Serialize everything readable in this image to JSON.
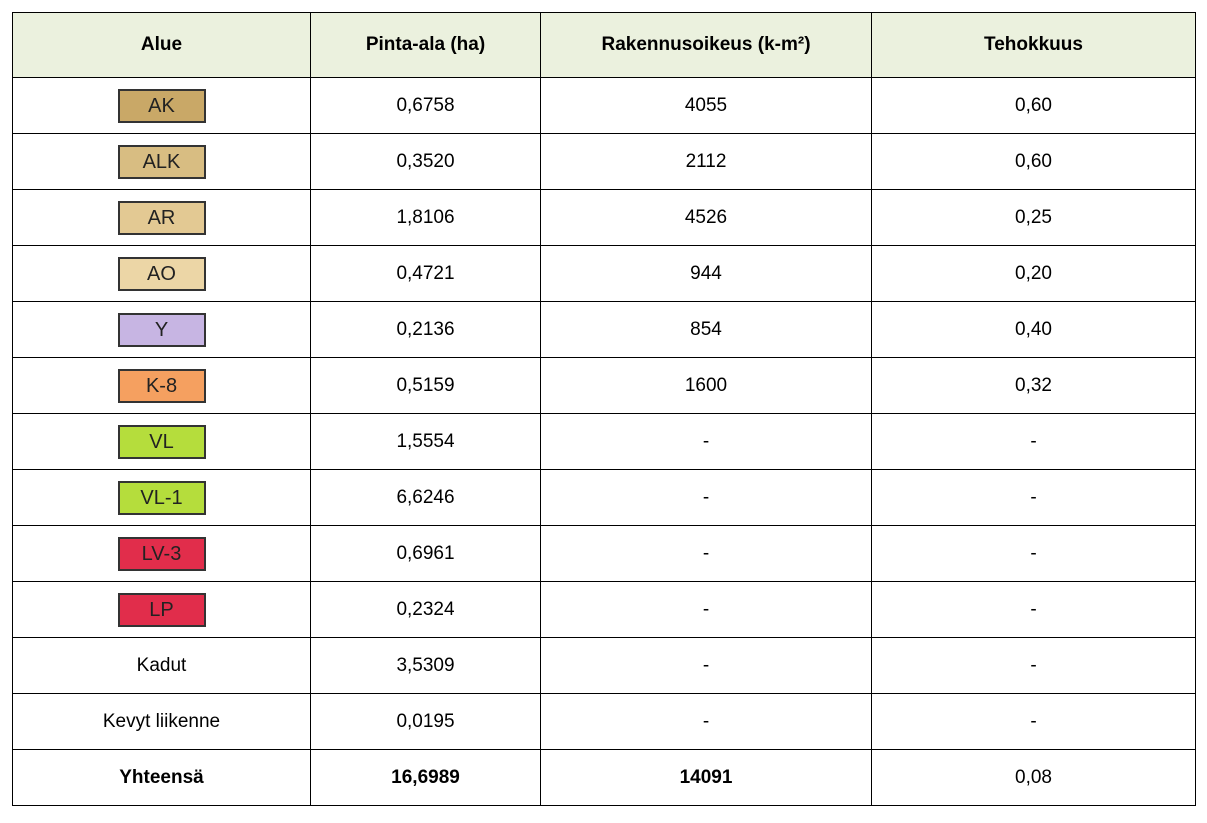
{
  "table": {
    "header": [
      "Alue",
      "Pinta-ala (ha)",
      "Rakennusoikeus (k-m²)",
      "Tehokkuus"
    ],
    "header_color": "#ebf1de",
    "rows": [
      {
        "cells": [
          "AK",
          "0,6758",
          "4055",
          "0,60"
        ],
        "color": "#c9a867"
      },
      {
        "cells": [
          "ALK",
          "0,3520",
          "2112",
          "0,60"
        ],
        "color": "#d8bd82"
      },
      {
        "cells": [
          "AR",
          "1,8106",
          "4526",
          "0,25"
        ],
        "color": "#e3c993"
      },
      {
        "cells": [
          "AO",
          "0,4721",
          "944",
          "0,20"
        ],
        "color": "#ecd6a6"
      },
      {
        "cells": [
          "Y",
          "0,2136",
          "854",
          "0,40"
        ],
        "color": "#c7b5e3"
      },
      {
        "cells": [
          "K-8",
          "0,5159",
          "1600",
          "0,32"
        ],
        "color": "#f5a060"
      },
      {
        "cells": [
          "VL",
          "1,5554",
          "-",
          "-"
        ],
        "color": "#b5dd3c"
      },
      {
        "cells": [
          "VL-1",
          "6,6246",
          "-",
          "-"
        ],
        "color": "#b5dd3c"
      },
      {
        "cells": [
          "LV-3",
          "0,6961",
          "-",
          "-"
        ],
        "color": "#e12d4b"
      },
      {
        "cells": [
          "LP",
          "0,2324",
          "-",
          "-"
        ],
        "color": "#e12d4b"
      },
      {
        "cells": [
          "Kadut",
          "3,5309",
          "-",
          "-"
        ]
      },
      {
        "cells": [
          "Kevyt liikenne",
          "0,0195",
          "-",
          "-"
        ]
      },
      {
        "cells": [
          "Yhteensä",
          "16,6989",
          "14091",
          "0,08"
        ]
      }
    ]
  }
}
